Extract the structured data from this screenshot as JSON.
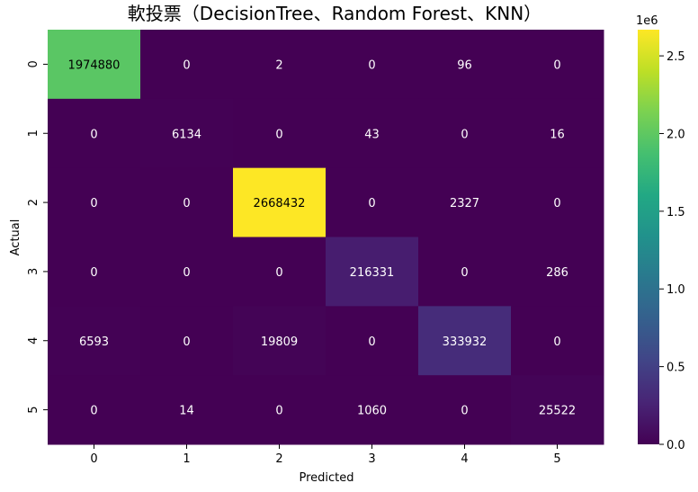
{
  "chart_data": {
    "type": "heatmap",
    "title": "軟投票（DecisionTree、Random Forest、KNN）",
    "xlabel": "Predicted",
    "ylabel": "Actual",
    "x_categories": [
      "0",
      "1",
      "2",
      "3",
      "4",
      "5"
    ],
    "y_categories": [
      "0",
      "1",
      "2",
      "3",
      "4",
      "5"
    ],
    "values": [
      [
        1974880,
        0,
        2,
        0,
        96,
        0
      ],
      [
        0,
        6134,
        0,
        43,
        0,
        16
      ],
      [
        0,
        0,
        2668432,
        0,
        2327,
        0
      ],
      [
        0,
        0,
        0,
        216331,
        0,
        286
      ],
      [
        6593,
        0,
        19809,
        0,
        333932,
        0
      ],
      [
        0,
        14,
        0,
        1060,
        0,
        25522
      ]
    ],
    "colormap": "viridis",
    "colorbar": {
      "range": [
        0,
        2668432
      ],
      "ticks": [
        0.0,
        0.5,
        1.0,
        1.5,
        2.0,
        2.5
      ],
      "tick_labels": [
        "0.0",
        "0.5",
        "1.0",
        "1.5",
        "2.0",
        "2.5"
      ],
      "multiplier_label": "1e6"
    },
    "annotation_colors": {
      "dark_cells": "#ffffff",
      "light_cells": "#000000"
    }
  }
}
